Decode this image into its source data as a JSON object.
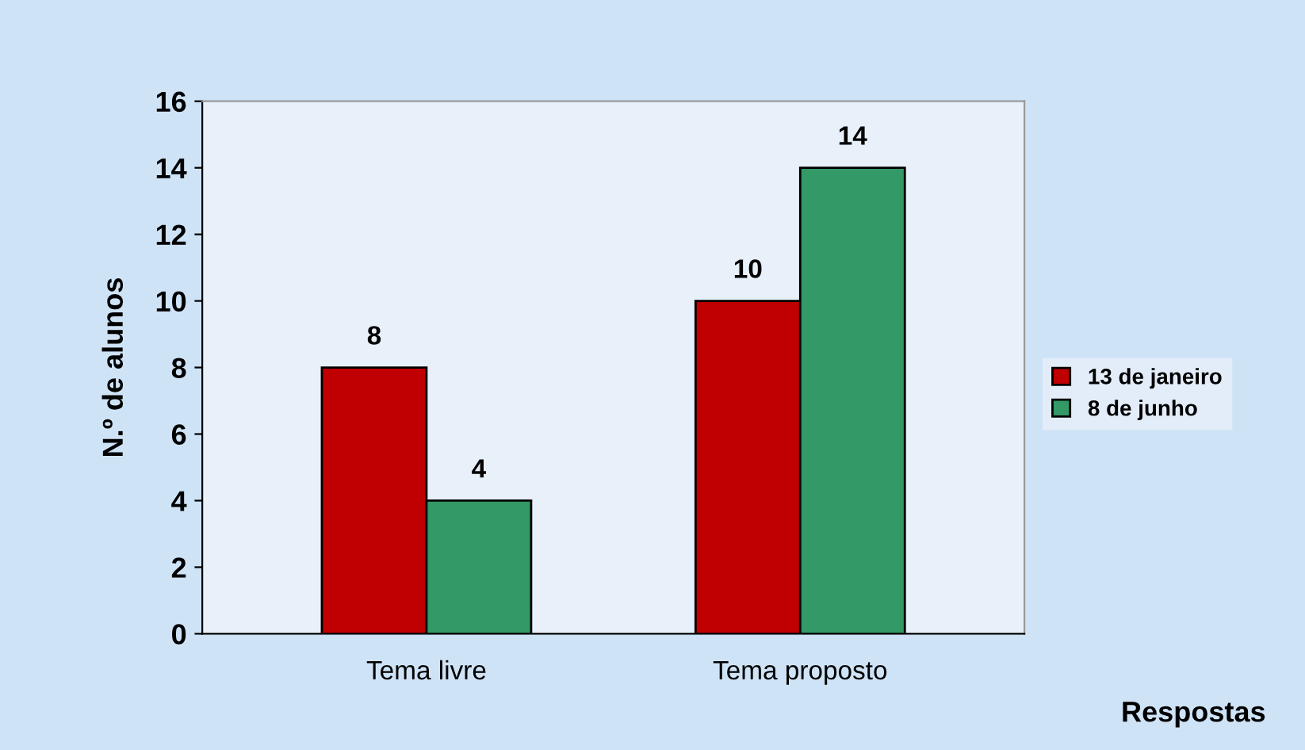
{
  "chart_data": {
    "type": "bar",
    "xlabel": "Respostas",
    "ylabel": "N.º de alunos",
    "categories": [
      "Tema livre",
      "Tema proposto"
    ],
    "series": [
      {
        "name": "13 de janeiro",
        "color": "#c00000",
        "values": [
          8,
          10
        ]
      },
      {
        "name": "8 de junho",
        "color": "#339966",
        "values": [
          4,
          14
        ]
      }
    ],
    "ylim": [
      0,
      16
    ],
    "yticks": [
      0,
      2,
      4,
      6,
      8,
      10,
      12,
      14,
      16
    ],
    "grid": false,
    "legend": "right",
    "data_labels": true
  }
}
